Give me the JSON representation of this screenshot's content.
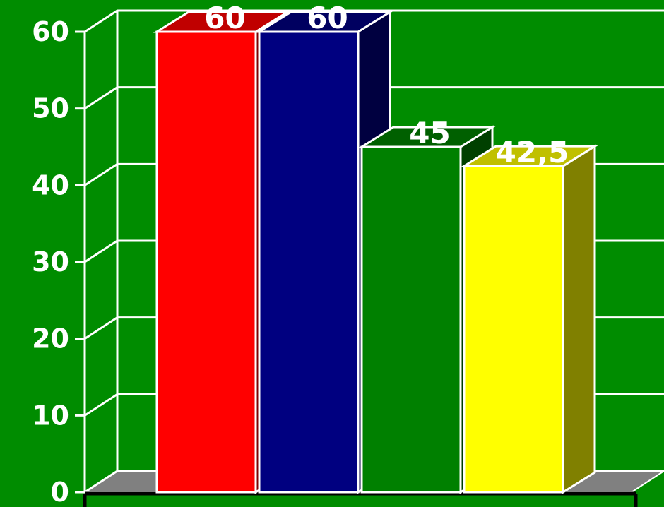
{
  "chart_data": {
    "type": "bar",
    "three_d": true,
    "categories": [
      "",
      "",
      "",
      ""
    ],
    "values": [
      60,
      60,
      45,
      42.5
    ],
    "data_labels": [
      "60",
      "60",
      "45",
      "42,5"
    ],
    "colors": [
      "#ff0000",
      "#000080",
      "#008000",
      "#ffff00"
    ],
    "side_colors": [
      "#800000",
      "#000040",
      "#004000",
      "#808000"
    ],
    "top_colors": [
      "#c00000",
      "#000060",
      "#006000",
      "#c0c000"
    ],
    "ylim": [
      0,
      60
    ],
    "yticks": [
      0,
      10,
      20,
      30,
      40,
      50,
      60
    ],
    "ytick_labels": [
      "0",
      "10",
      "20",
      "30",
      "40",
      "50",
      "60"
    ],
    "grid": true,
    "legend": "none",
    "background_color": "#008c00",
    "floor_color": "#808080",
    "grid_color": "#ffffff"
  }
}
